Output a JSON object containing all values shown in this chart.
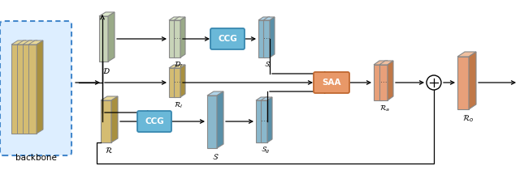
{
  "bg": "#ffffff",
  "yf": "#d4bc72",
  "ys": "#a89040",
  "yt": "#e8d898",
  "gf": "#c8d4b8",
  "gs": "#9aaa88",
  "gt": "#dce8cc",
  "bf": "#8ab8cc",
  "bs": "#5a90a8",
  "bt": "#b0d4e8",
  "of": "#e8a07a",
  "os": "#c07848",
  "ot": "#f0c0a0",
  "ccg_fill": "#6ab8d8",
  "ccg_edge": "#3888b0",
  "saa_fill": "#e89868",
  "saa_edge": "#c06830",
  "bb_fill": "#ddeeff",
  "bb_edge": "#4488cc",
  "lD": "$\\mathcal{D}$",
  "lR": "$\\mathcal{R}$",
  "lDl": "$\\mathcal{D}_l$",
  "lRl": "$\\mathcal{R}_l$",
  "lSl": "$\\mathcal{S}_l$",
  "lS": "$\\mathcal{S}$",
  "lSg": "$\\mathcal{S}_g$",
  "lRa": "$\\mathcal{R}_a$",
  "lRo": "$\\mathcal{R}_o$",
  "lCCG": "CCG",
  "lSAA": "SAA",
  "lbackbone": "backbone"
}
